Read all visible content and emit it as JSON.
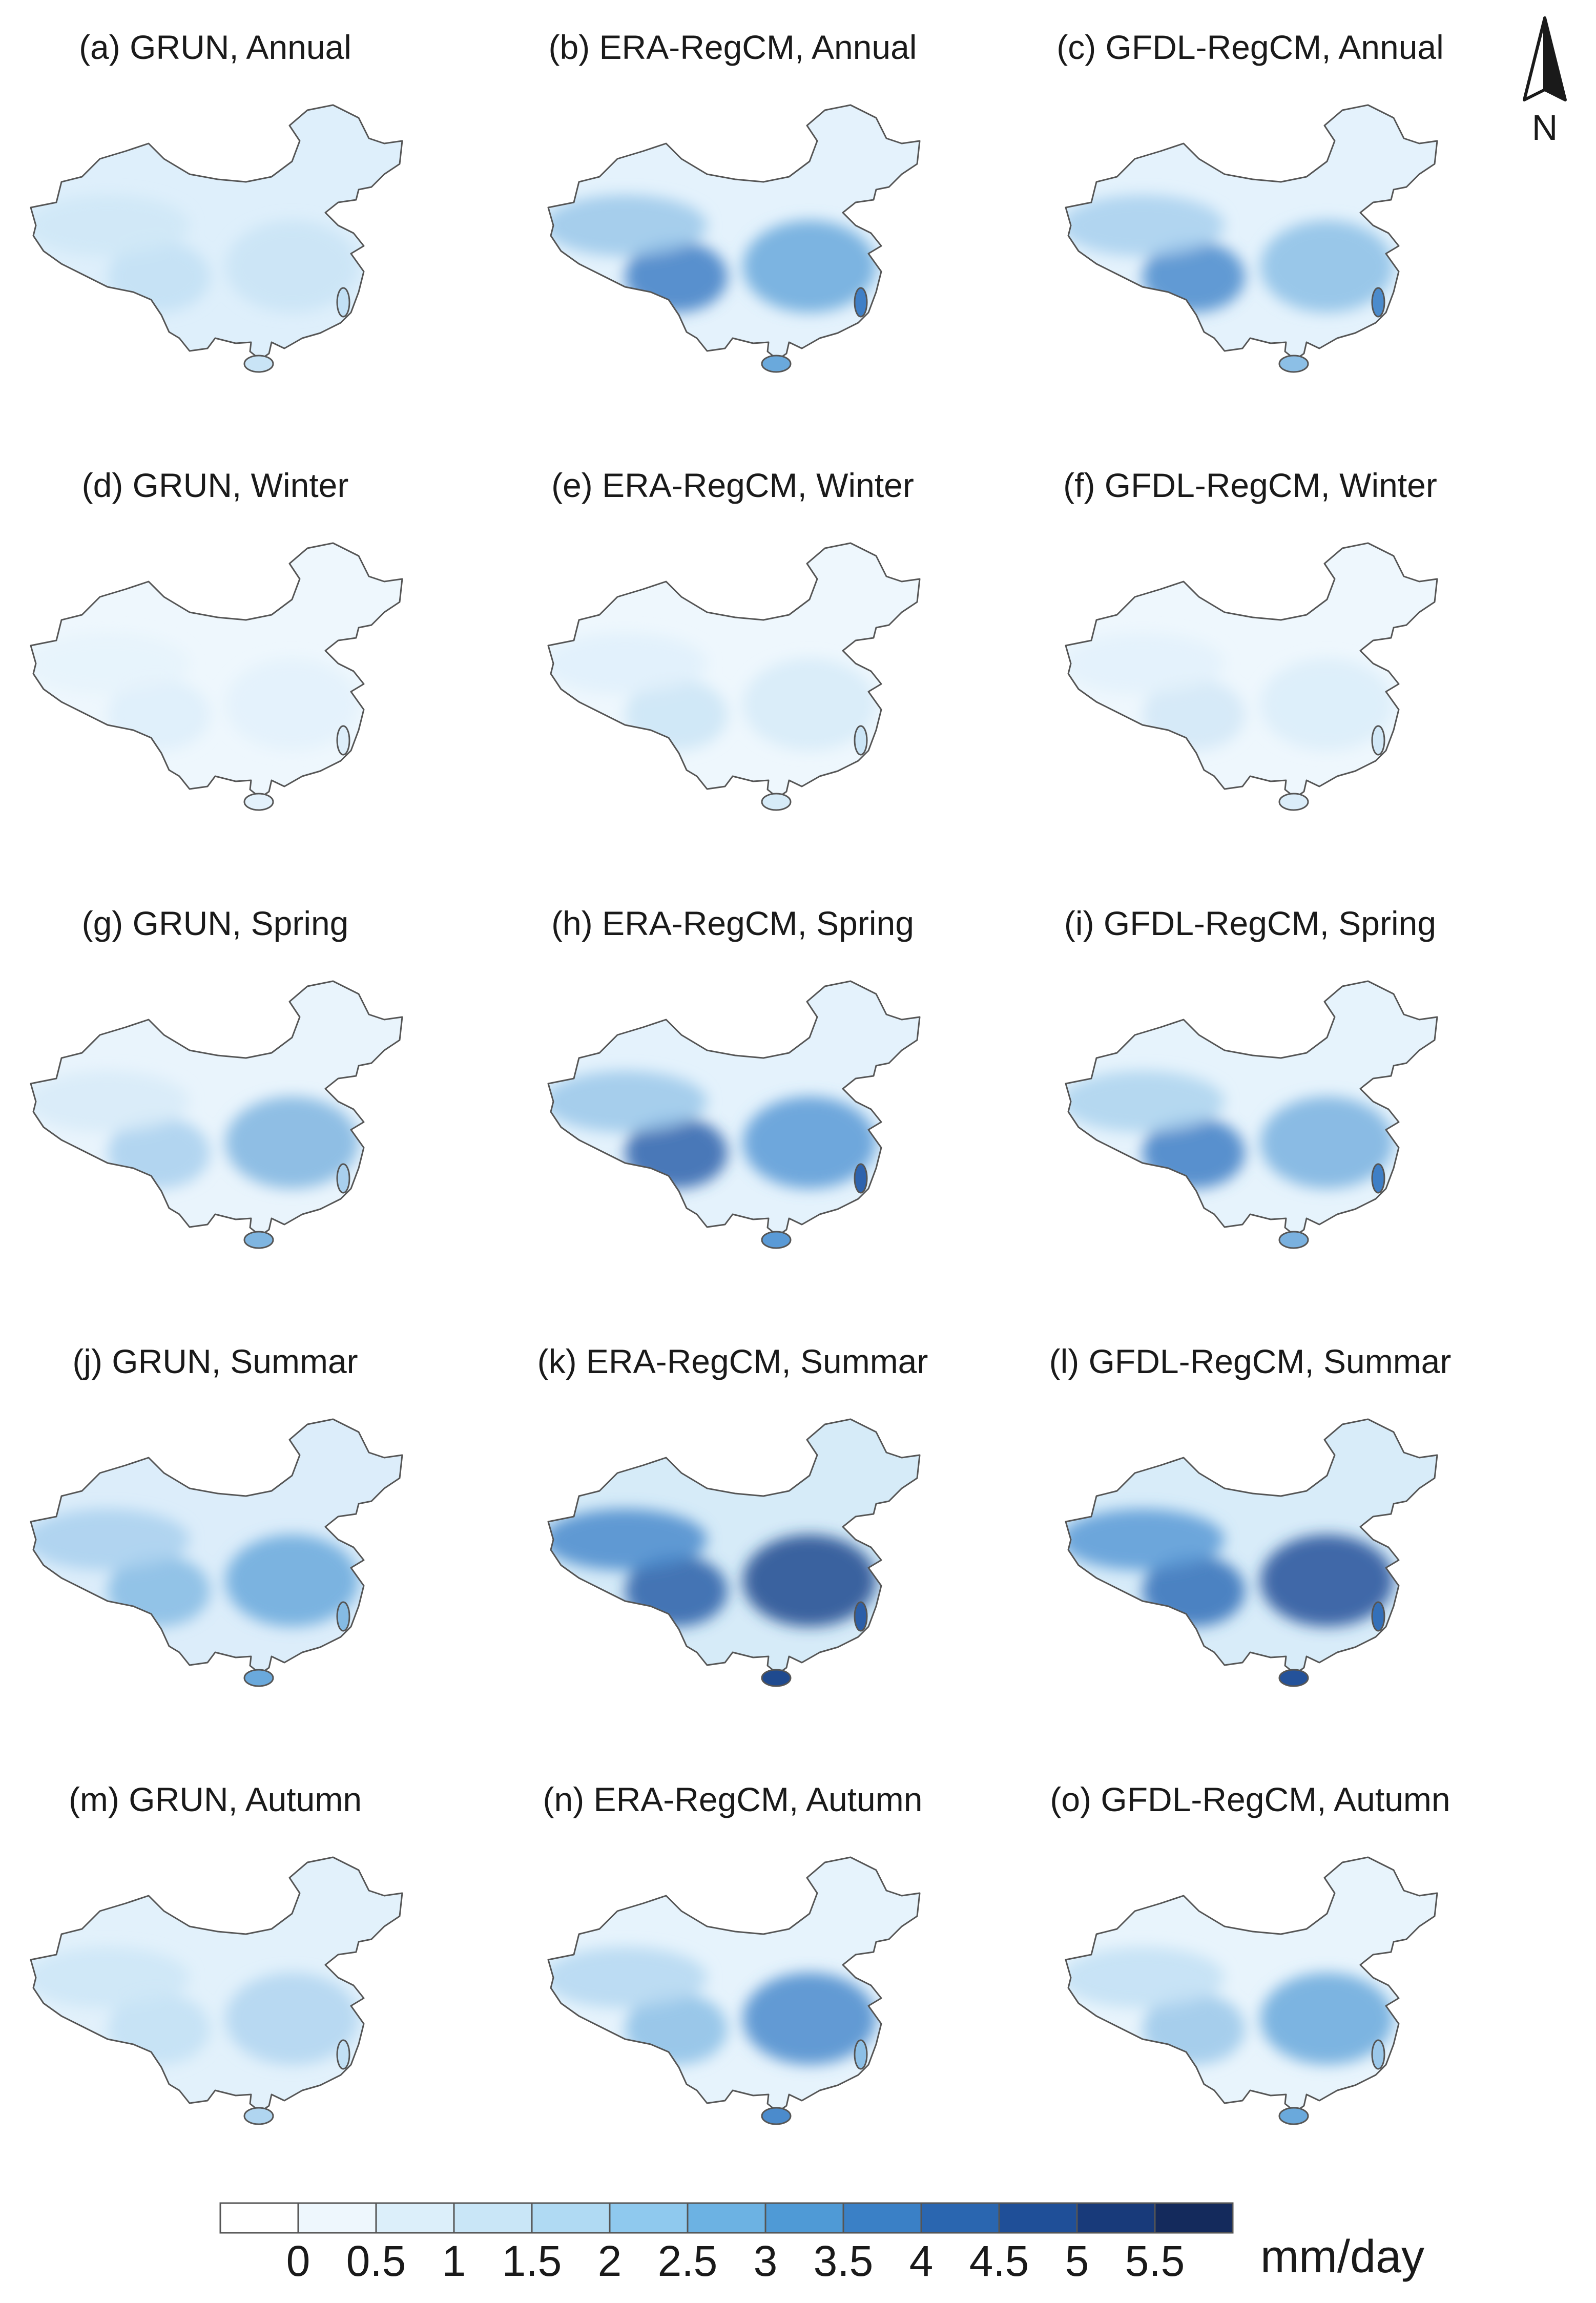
{
  "panels": [
    {
      "title": "(a) GRUN, Annual",
      "colors": {
        "base": "#deeffb",
        "blobs": [
          "#c9e4f6",
          "#c2e0f5",
          "#cfe7f7"
        ]
      }
    },
    {
      "title": "(b) ERA-RegCM, Annual",
      "colors": {
        "base": "#e4f2fc",
        "blobs": [
          "#6aa9dc",
          "#3f7fc6",
          "#9bc8ea"
        ]
      }
    },
    {
      "title": "(c) GFDL-RegCM, Annual",
      "colors": {
        "base": "#e4f2fc",
        "blobs": [
          "#8cbfe6",
          "#4b8bcc",
          "#a8d0ee"
        ]
      }
    },
    {
      "title": "(d) GRUN, Winter",
      "colors": {
        "base": "#eef7fd",
        "blobs": [
          "#e3f1fb",
          "#ddeefa",
          "#e6f3fc"
        ]
      }
    },
    {
      "title": "(e) ERA-RegCM, Winter",
      "colors": {
        "base": "#eef7fd",
        "blobs": [
          "#d6ebf8",
          "#cbe5f6",
          "#e0f0fb"
        ]
      }
    },
    {
      "title": "(f) GFDL-RegCM, Winter",
      "colors": {
        "base": "#eef7fd",
        "blobs": [
          "#dbedf9",
          "#d2e8f7",
          "#e3f1fb"
        ]
      }
    },
    {
      "title": "(g) GRUN, Spring",
      "colors": {
        "base": "#e9f4fc",
        "blobs": [
          "#7fb5e0",
          "#a9d0ee",
          "#d7ebf8"
        ]
      }
    },
    {
      "title": "(h) ERA-RegCM, Spring",
      "colors": {
        "base": "#e4f2fc",
        "blobs": [
          "#5a9ad6",
          "#2e63ad",
          "#9bc8ea"
        ]
      }
    },
    {
      "title": "(i) GFDL-RegCM, Spring",
      "colors": {
        "base": "#e6f3fc",
        "blobs": [
          "#7ab1df",
          "#3f7fc6",
          "#add3ef"
        ]
      }
    },
    {
      "title": "(j) GRUN, Summar",
      "colors": {
        "base": "#dcedfa",
        "blobs": [
          "#6aa9dc",
          "#85bbe4",
          "#a9d0ee"
        ]
      }
    },
    {
      "title": "(k) ERA-RegCM, Summar",
      "colors": {
        "base": "#d6ebf8",
        "blobs": [
          "#1f4a8f",
          "#2c5fa8",
          "#4b8bcc"
        ]
      }
    },
    {
      "title": "(l) GFDL-RegCM, Summar",
      "colors": {
        "base": "#d8ecf9",
        "blobs": [
          "#24529a",
          "#3470b9",
          "#5a9ad6"
        ]
      }
    },
    {
      "title": "(m) GRUN, Autumn",
      "colors": {
        "base": "#e2f1fb",
        "blobs": [
          "#b0d5f0",
          "#c2e0f5",
          "#cde6f7"
        ]
      }
    },
    {
      "title": "(n) ERA-RegCM, Autumn",
      "colors": {
        "base": "#e6f3fc",
        "blobs": [
          "#4b8bcc",
          "#8cbfe6",
          "#b5d8f1"
        ]
      }
    },
    {
      "title": "(o) GFDL-RegCM, Autumn",
      "colors": {
        "base": "#e8f4fc",
        "blobs": [
          "#6aa9dc",
          "#9bc8ea",
          "#c2e0f5"
        ]
      }
    }
  ],
  "colorbar": {
    "ticks": [
      "0",
      "0.5",
      "1",
      "1.5",
      "2",
      "2.5",
      "3",
      "3.5",
      "4",
      "4.5",
      "5",
      "5.5"
    ],
    "colors": [
      "#ffffff",
      "#eef7fd",
      "#dceffa",
      "#c9e6f7",
      "#b0daf3",
      "#8fc9ee",
      "#6cb2e3",
      "#4f9ad6",
      "#3a80c6",
      "#2a66b0",
      "#1f4f98",
      "#183a7a",
      "#142a5c"
    ],
    "unit": "mm/day"
  },
  "north_arrow": {
    "label": "N",
    "icon": "north-arrow-icon"
  },
  "outline": {
    "stroke": "#555555"
  }
}
